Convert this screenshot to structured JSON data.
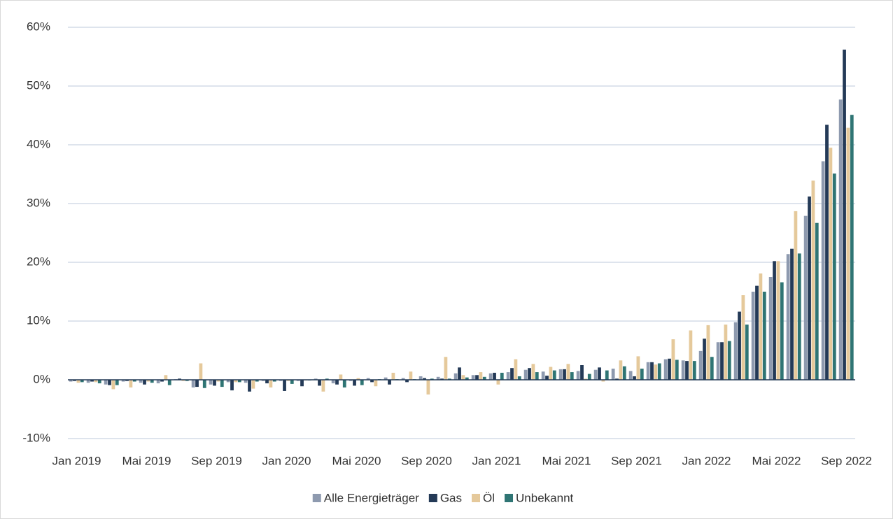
{
  "chart_data": {
    "type": "bar",
    "categories": [
      "Jan 2019",
      null,
      null,
      null,
      "Mai 2019",
      null,
      null,
      null,
      "Sep 2019",
      null,
      null,
      null,
      "Jan 2020",
      null,
      null,
      null,
      "Mai 2020",
      null,
      null,
      null,
      "Sep 2020",
      null,
      null,
      null,
      "Jan 2021",
      null,
      null,
      null,
      "Mai 2021",
      null,
      null,
      null,
      "Sep 2021",
      null,
      null,
      null,
      "Jan 2022",
      null,
      null,
      null,
      "Mai 2022",
      null,
      null,
      null,
      "Sep 2022"
    ],
    "series": [
      {
        "name": "Alle Energieträger",
        "color": "#8e9aaf",
        "values": [
          -0.3,
          -0.5,
          -0.8,
          -0.3,
          -0.5,
          -0.6,
          0.1,
          -1.3,
          -0.8,
          -0.4,
          -0.5,
          -0.2,
          -0.2,
          -0.2,
          0.2,
          -0.6,
          -0.2,
          0.3,
          0.4,
          0.3,
          0.6,
          0.5,
          1.1,
          0.8,
          1.1,
          1.3,
          1.7,
          1.4,
          1.8,
          1.5,
          1.7,
          1.9,
          1.5,
          3.0,
          3.5,
          3.3,
          4.9,
          6.4,
          9.8,
          15.0,
          17.5,
          21.4,
          27.9,
          37.2,
          47.7
        ]
      },
      {
        "name": "Gas",
        "color": "#243a57",
        "values": [
          -0.2,
          -0.3,
          -0.9,
          -0.2,
          -0.8,
          -0.3,
          0.2,
          -1.2,
          -1.0,
          -1.8,
          -2.0,
          -0.6,
          -1.9,
          -1.1,
          -1.0,
          -0.8,
          -1.0,
          -0.4,
          -0.8,
          -0.4,
          0.3,
          0.2,
          2.1,
          0.8,
          1.2,
          2.0,
          2.0,
          0.7,
          1.8,
          2.5,
          2.1,
          0.2,
          0.6,
          3.0,
          3.6,
          3.2,
          7.0,
          6.4,
          11.6,
          16.0,
          20.2,
          22.3,
          31.2,
          43.4,
          56.2
        ]
      },
      {
        "name": "Öl",
        "color": "#e5c99b",
        "values": [
          -0.5,
          -0.4,
          -1.6,
          -1.3,
          -0.3,
          0.8,
          -0.2,
          2.8,
          -0.3,
          -0.4,
          -1.5,
          -1.3,
          -0.2,
          -0.1,
          -2.0,
          0.9,
          0.3,
          -1.1,
          1.2,
          1.4,
          -2.5,
          3.9,
          0.8,
          1.3,
          -0.8,
          3.5,
          2.7,
          2.2,
          2.7,
          0.2,
          -0.3,
          3.3,
          4.0,
          2.6,
          6.9,
          8.4,
          9.3,
          9.4,
          14.4,
          18.1,
          20.2,
          28.7,
          33.9,
          39.5,
          42.9
        ]
      },
      {
        "name": "Unbekannt",
        "color": "#2f7574",
        "values": [
          -0.4,
          -0.6,
          -0.9,
          -0.3,
          -0.5,
          -0.9,
          -0.2,
          -1.4,
          -1.2,
          -0.4,
          -0.3,
          -0.3,
          -0.7,
          -0.1,
          0.2,
          -1.3,
          -0.9,
          0.1,
          0.1,
          0.1,
          0.2,
          0.2,
          0.4,
          0.5,
          1.2,
          0.6,
          1.3,
          1.6,
          1.3,
          1.0,
          1.6,
          2.3,
          1.9,
          2.8,
          3.4,
          3.2,
          3.9,
          6.6,
          9.4,
          15.0,
          16.6,
          21.5,
          26.7,
          35.1,
          45.1
        ]
      }
    ],
    "ylim": [
      -10,
      60
    ],
    "yticks": [
      {
        "value": -10,
        "label": "-10%"
      },
      {
        "value": 0,
        "label": "0%"
      },
      {
        "value": 10,
        "label": "10%"
      },
      {
        "value": 20,
        "label": "20%"
      },
      {
        "value": 30,
        "label": "30%"
      },
      {
        "value": 40,
        "label": "40%"
      },
      {
        "value": 50,
        "label": "50%"
      },
      {
        "value": 60,
        "label": "60%"
      }
    ],
    "grid": true,
    "legend": "bottom"
  }
}
